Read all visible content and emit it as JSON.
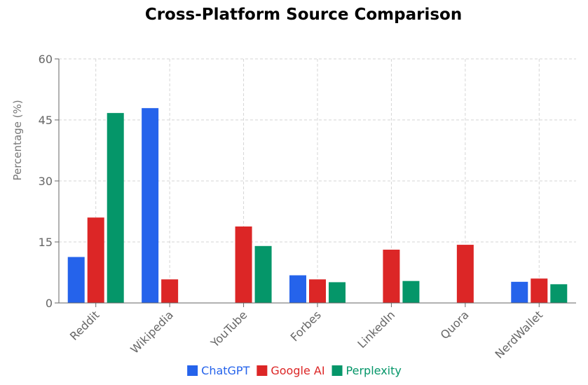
{
  "chart_data": {
    "type": "bar",
    "title": "Cross-Platform Source Comparison",
    "xlabel": "",
    "ylabel": "Percentage (%)",
    "ylim": [
      0,
      60
    ],
    "yticks": [
      0,
      15,
      30,
      45,
      60
    ],
    "grid": true,
    "legend_position": "bottom",
    "categories": [
      "Reddit",
      "Wikipedia",
      "YouTube",
      "Forbes",
      "LinkedIn",
      "Quora",
      "NerdWallet"
    ],
    "series": [
      {
        "name": "ChatGPT",
        "color": "#2563eb",
        "values": [
          11.3,
          47.9,
          0,
          6.8,
          0,
          0,
          5.2
        ]
      },
      {
        "name": "Google AI",
        "color": "#dc2626",
        "values": [
          21.0,
          5.8,
          18.8,
          5.8,
          13.1,
          14.3,
          6.0
        ]
      },
      {
        "name": "Perplexity",
        "color": "#059669",
        "values": [
          46.7,
          0,
          14.0,
          5.1,
          5.4,
          0,
          4.6
        ]
      }
    ]
  }
}
